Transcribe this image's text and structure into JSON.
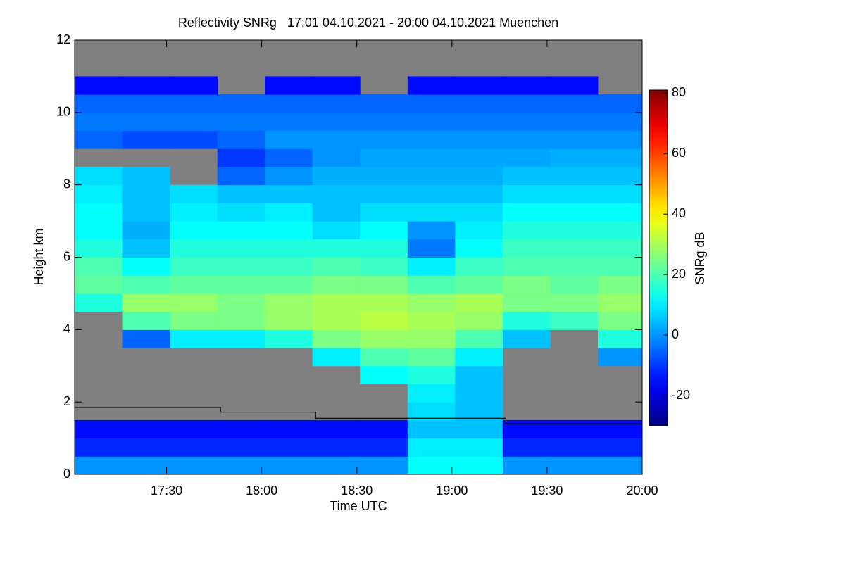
{
  "chart_data": {
    "type": "heatmap",
    "title": "Reflectivity SNRg   17:01 04.10.2021 - 20:00 04.10.2021 Muenchen",
    "x_label": "Time UTC",
    "y_label": "Height km",
    "colorbar_label": "SNRg dB",
    "colormap": "jet",
    "missing_color": "#808080",
    "xlim": [
      1021,
      1200
    ],
    "xticks": [
      {
        "value": 1050,
        "label": "17:30"
      },
      {
        "value": 1080,
        "label": "18:00"
      },
      {
        "value": 1110,
        "label": "18:30"
      },
      {
        "value": 1140,
        "label": "19:00"
      },
      {
        "value": 1170,
        "label": "19:30"
      },
      {
        "value": 1200,
        "label": "20:00"
      }
    ],
    "ylim": [
      0,
      12
    ],
    "yticks": [
      0,
      2,
      4,
      6,
      8,
      10,
      12
    ],
    "zlim": [
      -30,
      81
    ],
    "zticks": [
      -20,
      0,
      20,
      40,
      60,
      80
    ],
    "x_edges": [
      1021,
      1036,
      1051,
      1066,
      1081,
      1096,
      1111,
      1126,
      1141,
      1156,
      1171,
      1186,
      1200
    ],
    "y_edges": [
      0,
      0.5,
      1,
      1.5,
      2,
      2.5,
      3,
      3.5,
      4,
      4.5,
      5,
      5.5,
      6,
      6.5,
      7,
      7.5,
      8,
      8.5,
      9,
      9.5,
      10,
      10.5,
      11,
      11.5,
      12
    ],
    "z": [
      [
        0,
        0,
        0,
        0,
        0,
        0,
        0,
        12,
        12,
        0,
        0,
        0
      ],
      [
        -12,
        -12,
        -12,
        -12,
        -12,
        -12,
        -12,
        10,
        10,
        -12,
        -12,
        -12
      ],
      [
        -15,
        -15,
        -15,
        -15,
        -15,
        -15,
        -15,
        5,
        5,
        -15,
        -15,
        -15
      ],
      [
        null,
        null,
        null,
        null,
        null,
        null,
        null,
        8,
        5,
        null,
        null,
        null
      ],
      [
        null,
        null,
        null,
        null,
        null,
        null,
        null,
        10,
        5,
        null,
        null,
        null
      ],
      [
        null,
        null,
        null,
        null,
        null,
        null,
        12,
        15,
        5,
        null,
        null,
        null
      ],
      [
        null,
        null,
        null,
        null,
        null,
        10,
        20,
        22,
        10,
        null,
        null,
        0
      ],
      [
        null,
        -5,
        10,
        10,
        15,
        25,
        28,
        28,
        20,
        5,
        null,
        15
      ],
      [
        null,
        20,
        25,
        25,
        28,
        30,
        32,
        30,
        28,
        15,
        18,
        25
      ],
      [
        15,
        28,
        28,
        25,
        28,
        30,
        30,
        28,
        30,
        25,
        25,
        28
      ],
      [
        22,
        20,
        22,
        22,
        22,
        25,
        25,
        20,
        22,
        25,
        22,
        25
      ],
      [
        20,
        12,
        18,
        18,
        18,
        20,
        18,
        10,
        18,
        20,
        20,
        20
      ],
      [
        15,
        5,
        15,
        15,
        15,
        15,
        15,
        -3,
        12,
        18,
        18,
        18
      ],
      [
        12,
        3,
        12,
        12,
        12,
        8,
        12,
        0,
        10,
        15,
        15,
        15
      ],
      [
        12,
        5,
        10,
        8,
        10,
        5,
        8,
        8,
        8,
        12,
        12,
        12
      ],
      [
        10,
        5,
        8,
        5,
        5,
        5,
        5,
        5,
        5,
        8,
        8,
        8
      ],
      [
        8,
        5,
        null,
        -5,
        0,
        3,
        3,
        3,
        3,
        5,
        5,
        5
      ],
      [
        null,
        null,
        null,
        -10,
        -5,
        0,
        2,
        2,
        2,
        2,
        3,
        3
      ],
      [
        -5,
        -8,
        -8,
        -5,
        0,
        0,
        0,
        0,
        0,
        0,
        0,
        0
      ],
      [
        -3,
        -3,
        -3,
        -3,
        -3,
        -3,
        -3,
        -3,
        -3,
        -3,
        -3,
        -3
      ],
      [
        -5,
        -5,
        -5,
        -5,
        -5,
        -5,
        -5,
        -5,
        -5,
        -5,
        -5,
        -5
      ],
      [
        -15,
        -15,
        -15,
        null,
        -15,
        -15,
        null,
        -15,
        -15,
        -15,
        -15,
        null
      ],
      [
        null,
        null,
        null,
        null,
        null,
        null,
        null,
        null,
        null,
        null,
        null,
        null
      ],
      [
        null,
        null,
        null,
        null,
        null,
        null,
        null,
        null,
        null,
        null,
        null,
        null
      ]
    ],
    "line": {
      "color": "#000000",
      "x": [
        1021,
        1067,
        1067,
        1097,
        1097,
        1157,
        1157,
        1200
      ],
      "y": [
        1.85,
        1.85,
        1.72,
        1.72,
        1.55,
        1.55,
        1.4,
        1.4
      ]
    }
  }
}
